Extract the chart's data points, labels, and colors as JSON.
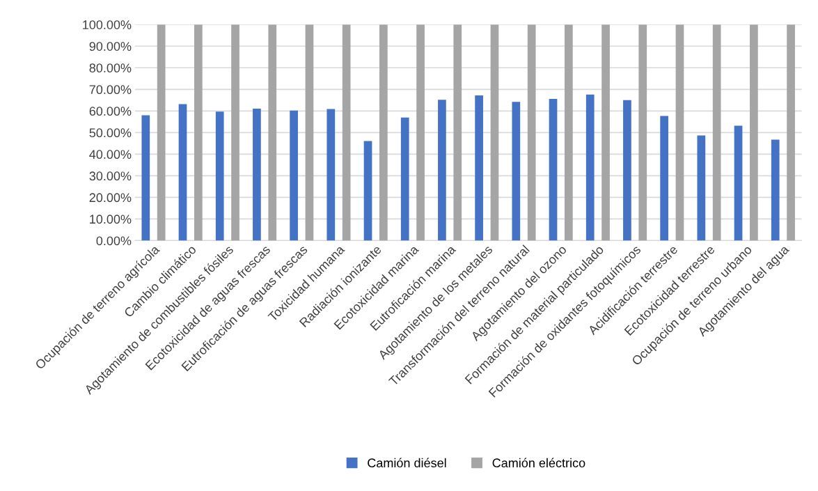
{
  "chart_data": {
    "type": "bar",
    "categories": [
      "Ocupación de terreno agrícola",
      "Cambio climático",
      "Agotamiento de combustibles fósiles",
      "Ecotoxicidad de aguas frescas",
      "Eutroficación de aguas frescas",
      "Toxicidad humana",
      "Radiación ionizante",
      "Ecotoxicidad marina",
      "Eutroficación marina",
      "Agotamiento de los metales",
      "Transformación del terreno natural",
      "Agotamiento del ozono",
      "Formación de material particulado",
      "Formación de oxidantes fotoquímicos",
      "Acidificación terrestre",
      "Ecotoxicidad terrestre",
      "Ocupación de terreno urbano",
      "Agotamiento del agua"
    ],
    "series": [
      {
        "name": "Camión diésel",
        "color": "#4472c4",
        "values": [
          58.0,
          63.2,
          59.7,
          61.1,
          60.2,
          60.9,
          46.1,
          57.0,
          65.2,
          67.2,
          64.2,
          65.6,
          67.6,
          65.0,
          57.7,
          48.7,
          53.2,
          46.7
        ]
      },
      {
        "name": "Camión eléctrico",
        "color": "#a5a5a5",
        "values": [
          100,
          100,
          100,
          100,
          100,
          100,
          100,
          100,
          100,
          100,
          100,
          100,
          100,
          100,
          100,
          100,
          100,
          100
        ]
      }
    ],
    "ylim": [
      0,
      100
    ],
    "yticks": [
      {
        "value": 0,
        "label": "0.00%"
      },
      {
        "value": 10,
        "label": "10.00%"
      },
      {
        "value": 20,
        "label": "20.00%"
      },
      {
        "value": 30,
        "label": "30.00%"
      },
      {
        "value": 40,
        "label": "40.00%"
      },
      {
        "value": 50,
        "label": "50.00%"
      },
      {
        "value": 60,
        "label": "60.00%"
      },
      {
        "value": 70,
        "label": "70.00%"
      },
      {
        "value": 80,
        "label": "80.00%"
      },
      {
        "value": 90,
        "label": "90.00%"
      },
      {
        "value": 100,
        "label": "100.00%"
      }
    ],
    "grid": "y",
    "legend": "bottom"
  }
}
